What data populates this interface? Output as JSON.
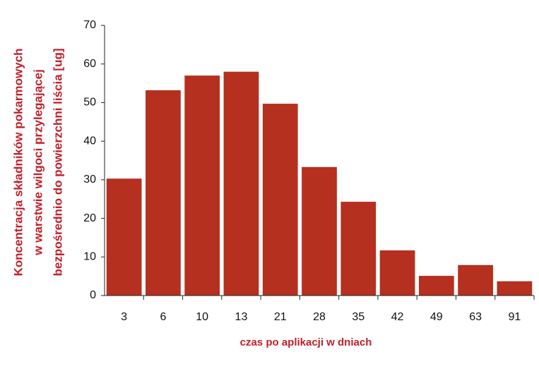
{
  "chart_data": {
    "type": "bar",
    "y_label": [
      "Koncentracja składników  pokarmowych",
      "w warstwie wilgoci przylegającej",
      "bezpośrednio  do powierzchni  liścia [ug]"
    ],
    "x_label": "czas po aplikacji w dniach",
    "categories": [
      "3",
      "6",
      "10",
      "13",
      "21",
      "28",
      "35",
      "42",
      "49",
      "63",
      "91"
    ],
    "values": [
      30.3,
      53.2,
      57.0,
      58.0,
      49.7,
      33.3,
      24.3,
      11.7,
      5.1,
      7.9,
      3.7
    ],
    "color": "#b5301f",
    "ylim": [
      0,
      70
    ],
    "yticks": [
      0,
      10,
      20,
      30,
      40,
      50,
      60,
      70
    ],
    "grid": false
  }
}
